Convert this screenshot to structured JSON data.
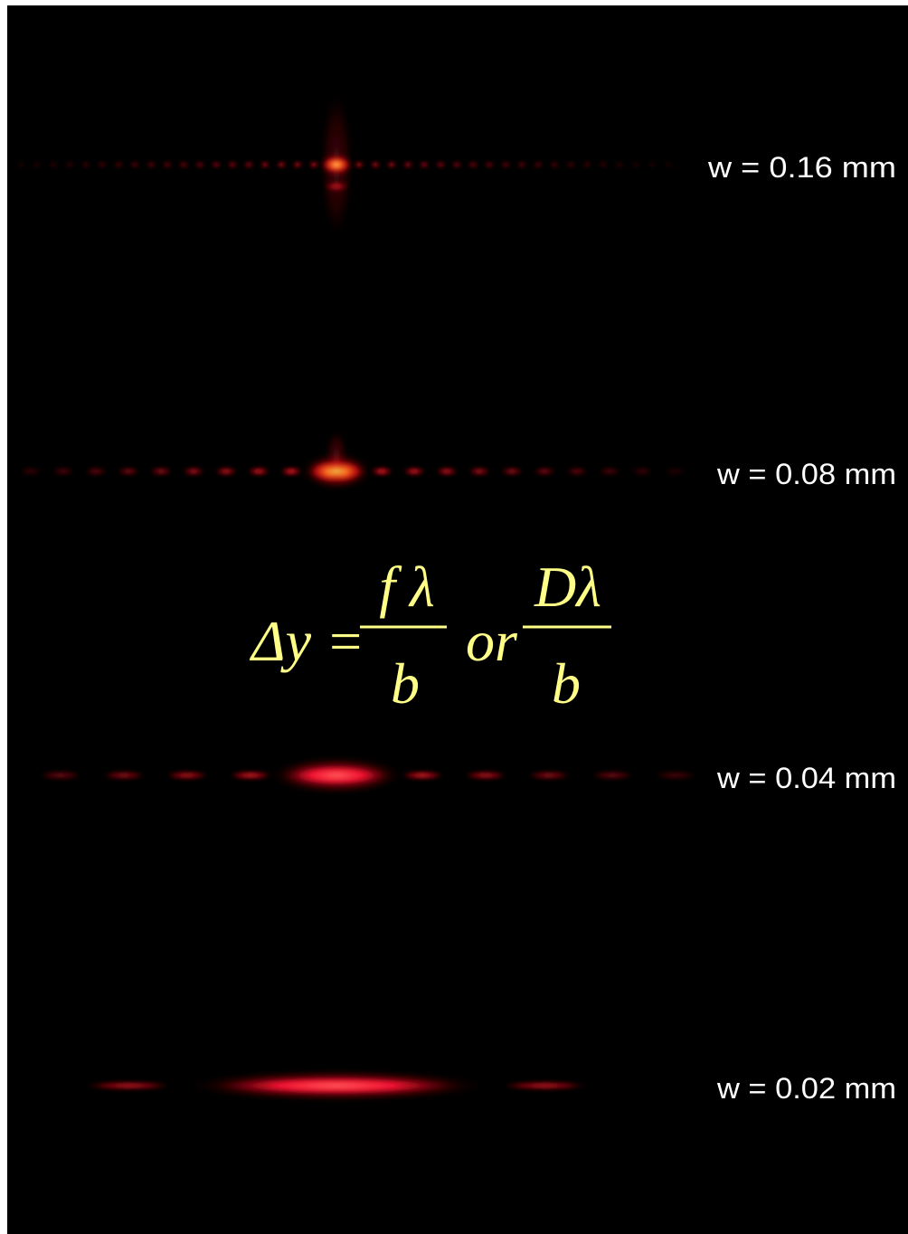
{
  "patterns": [
    {
      "label": "w = 0.16 mm"
    },
    {
      "label": "w = 0.08 mm"
    },
    {
      "label": "w = 0.04 mm"
    },
    {
      "label": "w = 0.02 mm"
    }
  ],
  "formula": {
    "lhs": "Δy =",
    "fraction1": {
      "numerator": "f λ",
      "denominator": "b"
    },
    "connector": "or",
    "fraction2": {
      "numerator": "Dλ",
      "denominator": "b"
    }
  }
}
